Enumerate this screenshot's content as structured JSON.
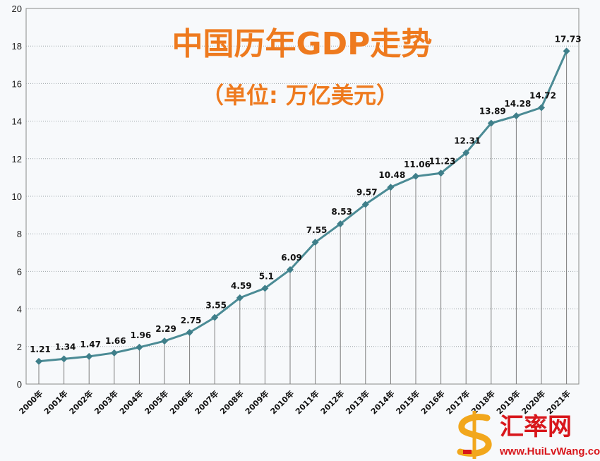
{
  "chart_data": {
    "type": "line",
    "title": "中国历年GDP走势",
    "subtitle": "（单位: 万亿美元）",
    "xlabel": "",
    "ylabel": "",
    "categories": [
      "2000年",
      "2001年",
      "2002年",
      "2003年",
      "2004年",
      "2005年",
      "2006年",
      "2007年",
      "2008年",
      "2009年",
      "2010年",
      "2011年",
      "2012年",
      "2013年",
      "2014年",
      "2015年",
      "2016年",
      "2017年",
      "2018年",
      "2019年",
      "2020年",
      "2021年"
    ],
    "values": [
      1.21,
      1.34,
      1.47,
      1.66,
      1.96,
      2.29,
      2.75,
      3.55,
      4.59,
      5.1,
      6.09,
      7.55,
      8.53,
      9.57,
      10.48,
      11.06,
      11.23,
      12.31,
      13.89,
      14.28,
      14.72,
      17.73
    ],
    "value_labels": [
      "1.21",
      "1.34",
      "1.47",
      "1.66",
      "1.96",
      "2.29",
      "2.75",
      "3.55",
      "4.59",
      "5.1",
      "6.09",
      "7.55",
      "8.53",
      "9.57",
      "10.48",
      "11.06",
      "11.23",
      "12.31",
      "13.89",
      "14.28",
      "14.72",
      "17.73"
    ],
    "ylim": [
      0,
      20
    ],
    "yticks": [
      0,
      2,
      4,
      6,
      8,
      10,
      12,
      14,
      16,
      18,
      20
    ],
    "grid": true,
    "drop_lines": true,
    "line_color": "#4b8b95",
    "marker_color": "#3f7f8a",
    "title_color": "#ee7a1e"
  },
  "watermark": {
    "text": "汇率网",
    "url": "www.HuiLvWang.com",
    "color": "#d8161b"
  }
}
